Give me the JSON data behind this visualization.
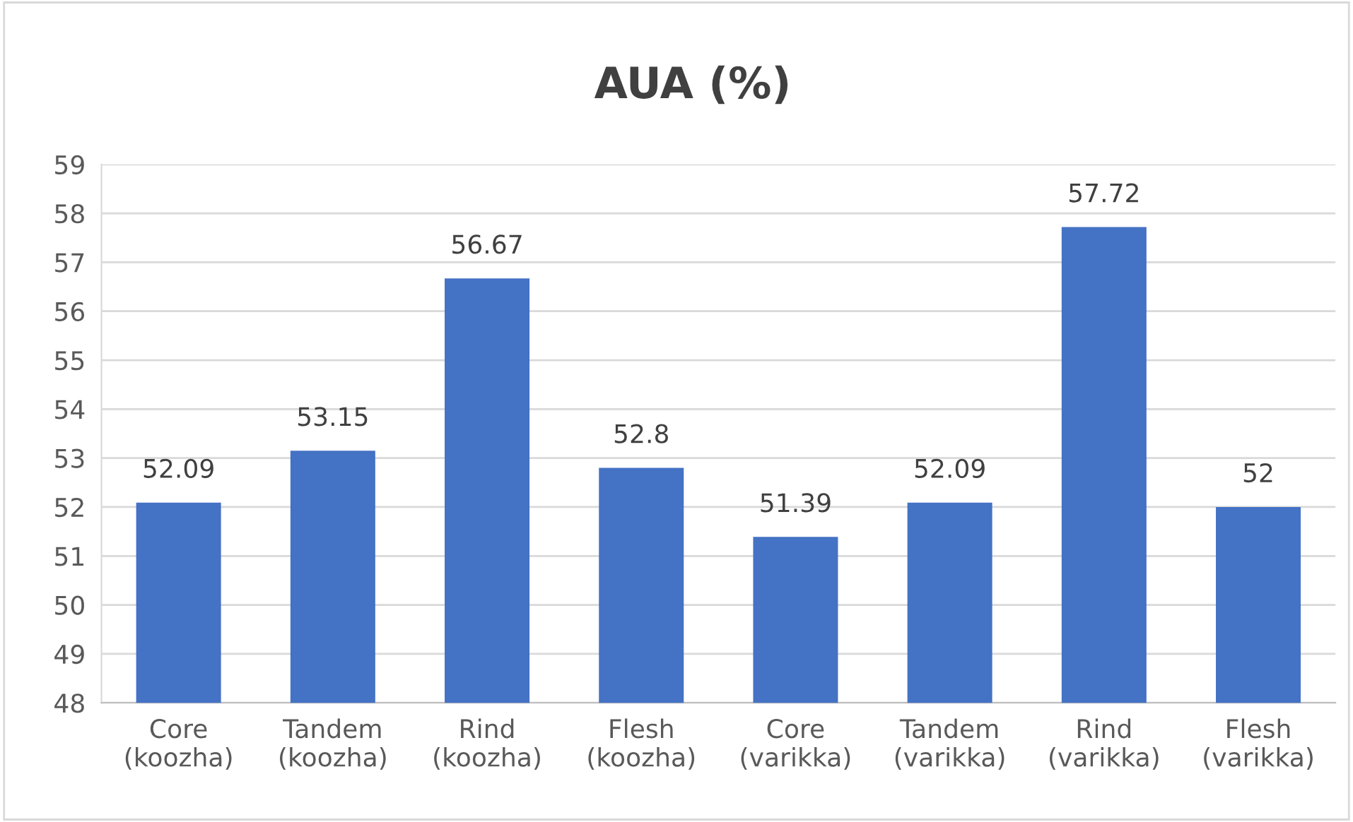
{
  "chart_data": {
    "type": "bar",
    "title": "AUA (%)",
    "categories": [
      "Core\n(koozha)",
      "Tandem\n(koozha)",
      "Rind\n(koozha)",
      "Flesh\n(koozha)",
      "Core\n(varikka)",
      "Tandem\n(varikka)",
      "Rind\n(varikka)",
      "Flesh\n(varikka)"
    ],
    "values": [
      52.09,
      53.15,
      56.67,
      52.8,
      51.39,
      52.09,
      57.72,
      52
    ],
    "color": "#4472c4",
    "ylim": [
      48,
      59
    ],
    "yticks": [
      48,
      49,
      50,
      51,
      52,
      53,
      54,
      55,
      56,
      57,
      58,
      59
    ],
    "grid": "y",
    "data_labels": true
  }
}
